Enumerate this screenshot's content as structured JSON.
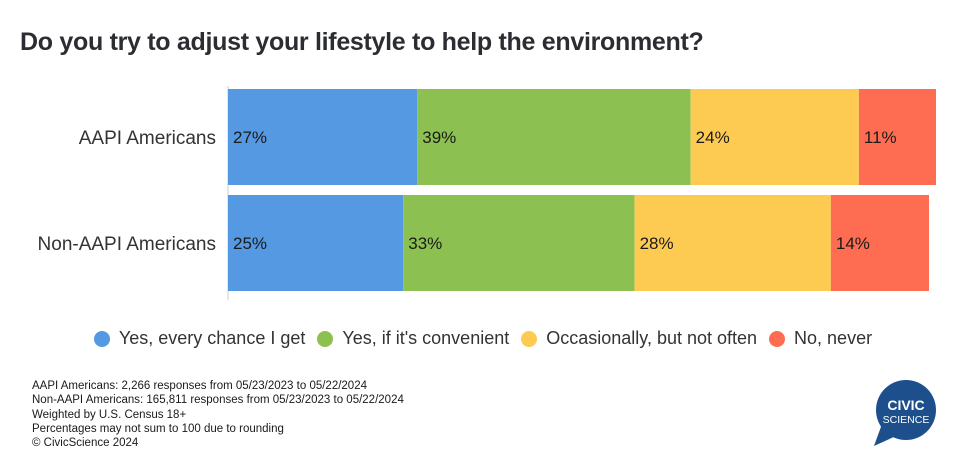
{
  "chart_data": {
    "type": "bar",
    "orientation": "horizontal",
    "stacked": true,
    "title": "Do you try to adjust your lifestyle to help the environment?",
    "xlabel": "",
    "ylabel": "",
    "categories": [
      "AAPI Americans",
      "Non-AAPI Americans"
    ],
    "series": [
      {
        "name": "Yes, every chance I get",
        "color": "#5599e3",
        "values": [
          27,
          25
        ],
        "labels": [
          "27%",
          "25%"
        ]
      },
      {
        "name": "Yes, if it's convenient",
        "color": "#8cc152",
        "values": [
          39,
          33
        ],
        "labels": [
          "39%",
          "33%"
        ]
      },
      {
        "name": "Occasionally, but not often",
        "color": "#fecb52",
        "values": [
          24,
          28
        ],
        "labels": [
          "24%",
          "28%"
        ]
      },
      {
        "name": "No, never",
        "color": "#fe6d52",
        "values": [
          11,
          14
        ],
        "labels": [
          "11%",
          "14%"
        ]
      }
    ],
    "unit": "%",
    "grid": false,
    "legend_position": "bottom"
  },
  "footnotes": [
    "AAPI Americans: 2,266 responses from 05/23/2023 to 05/22/2024",
    "Non-AAPI Americans: 165,811 responses from 05/23/2023 to 05/22/2024",
    "Weighted by U.S. Census 18+",
    "Percentages may not sum to 100 due to rounding",
    "© CivicScience 2024"
  ],
  "logo": {
    "line1": "CIVIC",
    "line2": "SCIENCE",
    "color": "#1d4f8c"
  }
}
